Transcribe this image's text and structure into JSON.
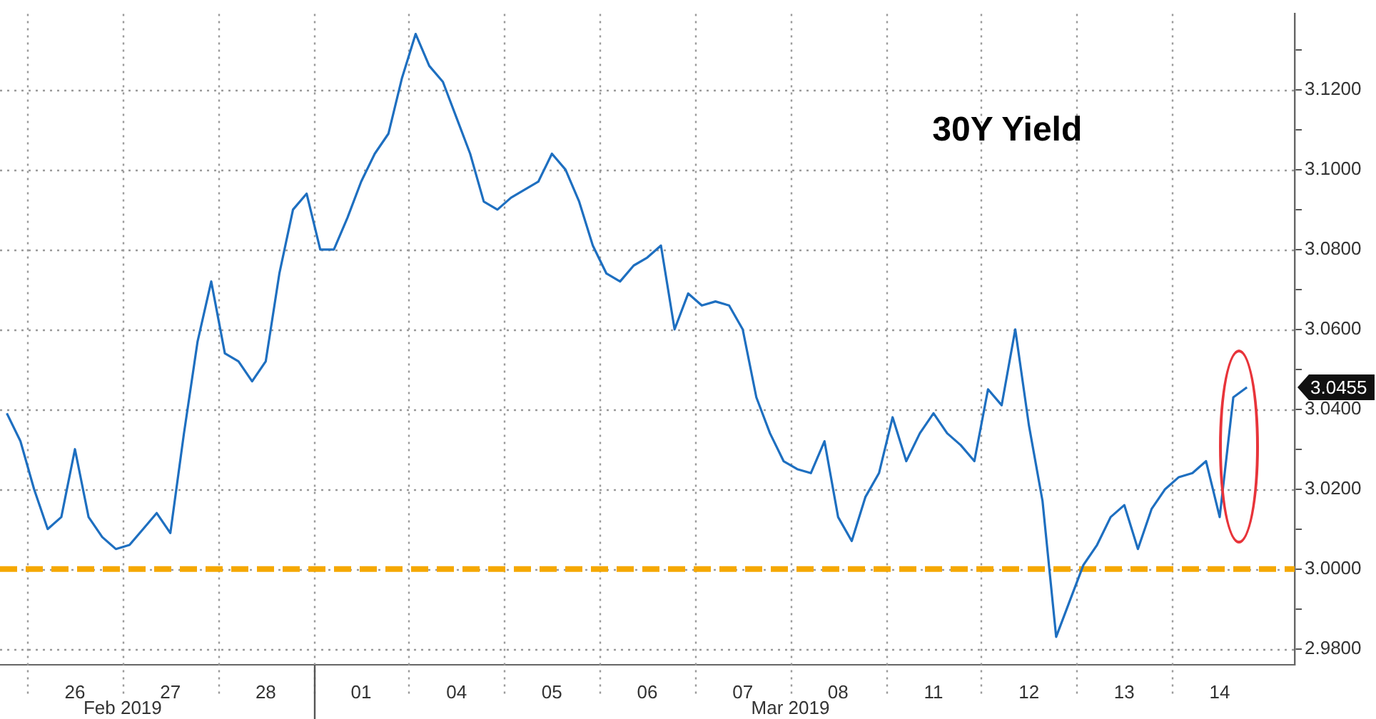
{
  "chart_data": {
    "type": "line",
    "title": "30Y Yield",
    "categories": [
      null,
      null,
      null,
      null,
      null,
      "26",
      null,
      null,
      null,
      null,
      null,
      null,
      "27",
      null,
      null,
      null,
      null,
      null,
      null,
      "28",
      null,
      null,
      null,
      null,
      null,
      null,
      "01",
      null,
      null,
      null,
      null,
      null,
      null,
      "04",
      null,
      null,
      null,
      null,
      null,
      null,
      "05",
      null,
      null,
      null,
      null,
      null,
      null,
      "06",
      null,
      null,
      null,
      null,
      null,
      null,
      "07",
      null,
      null,
      null,
      null,
      null,
      null,
      "08",
      null,
      null,
      null,
      null,
      null,
      null,
      "11",
      null,
      null,
      null,
      null,
      null,
      null,
      "12",
      null,
      null,
      null,
      null,
      null,
      null,
      "13",
      null,
      null,
      null,
      null,
      null,
      null,
      "14",
      null,
      null,
      null,
      null,
      null
    ],
    "series": [
      {
        "color": "#1e6fc0",
        "values": [
          3.039,
          3.032,
          3.02,
          3.01,
          3.013,
          3.03,
          3.013,
          3.008,
          3.005,
          3.006,
          3.01,
          3.014,
          3.009,
          3.034,
          3.057,
          3.072,
          3.054,
          3.052,
          3.047,
          3.052,
          3.074,
          3.09,
          3.094,
          3.08,
          3.08,
          3.088,
          3.097,
          3.104,
          3.109,
          3.123,
          3.134,
          3.126,
          3.122,
          3.113,
          3.104,
          3.092,
          3.09,
          3.093,
          3.095,
          3.097,
          3.104,
          3.1,
          3.092,
          3.081,
          3.074,
          3.072,
          3.076,
          3.078,
          3.081,
          3.06,
          3.069,
          3.066,
          3.067,
          3.066,
          3.06,
          3.043,
          3.034,
          3.027,
          3.025,
          3.024,
          3.032,
          3.013,
          3.007,
          3.018,
          3.024,
          3.038,
          3.027,
          3.034,
          3.039,
          3.034,
          3.031,
          3.027,
          3.045,
          3.041,
          3.06,
          3.036,
          3.017,
          2.983,
          2.992,
          3.001,
          3.006,
          3.013,
          3.016,
          3.005,
          3.015,
          3.02,
          3.023,
          3.024,
          3.027,
          3.013,
          3.043,
          3.0455,
          null,
          null,
          null
        ]
      }
    ],
    "ylim": [
      2.976,
      3.139
    ],
    "yticks": [
      {
        "value": 2.98,
        "label": "2.9800"
      },
      {
        "value": 2.99,
        "label": null
      },
      {
        "value": 3.0,
        "label": "3.0000"
      },
      {
        "value": 3.01,
        "label": null
      },
      {
        "value": 3.02,
        "label": "3.0200"
      },
      {
        "value": 3.03,
        "label": null
      },
      {
        "value": 3.04,
        "label": "3.0400"
      },
      {
        "value": 3.05,
        "label": null
      },
      {
        "value": 3.06,
        "label": "3.0600"
      },
      {
        "value": 3.07,
        "label": null
      },
      {
        "value": 3.08,
        "label": "3.0800"
      },
      {
        "value": 3.09,
        "label": null
      },
      {
        "value": 3.1,
        "label": "3.1000"
      },
      {
        "value": 3.11,
        "label": null
      },
      {
        "value": 3.12,
        "label": "3.1200"
      },
      {
        "value": 3.13,
        "label": null
      }
    ],
    "grid": true,
    "legend": false,
    "marker": "none",
    "ref_lines": [
      {
        "axis": "y",
        "value": 3.0,
        "color": "#f5a800",
        "line_style": "dashed"
      }
    ],
    "annotations": [
      "Feb 2019",
      "Mar 2019",
      "3.0455"
    ]
  }
}
